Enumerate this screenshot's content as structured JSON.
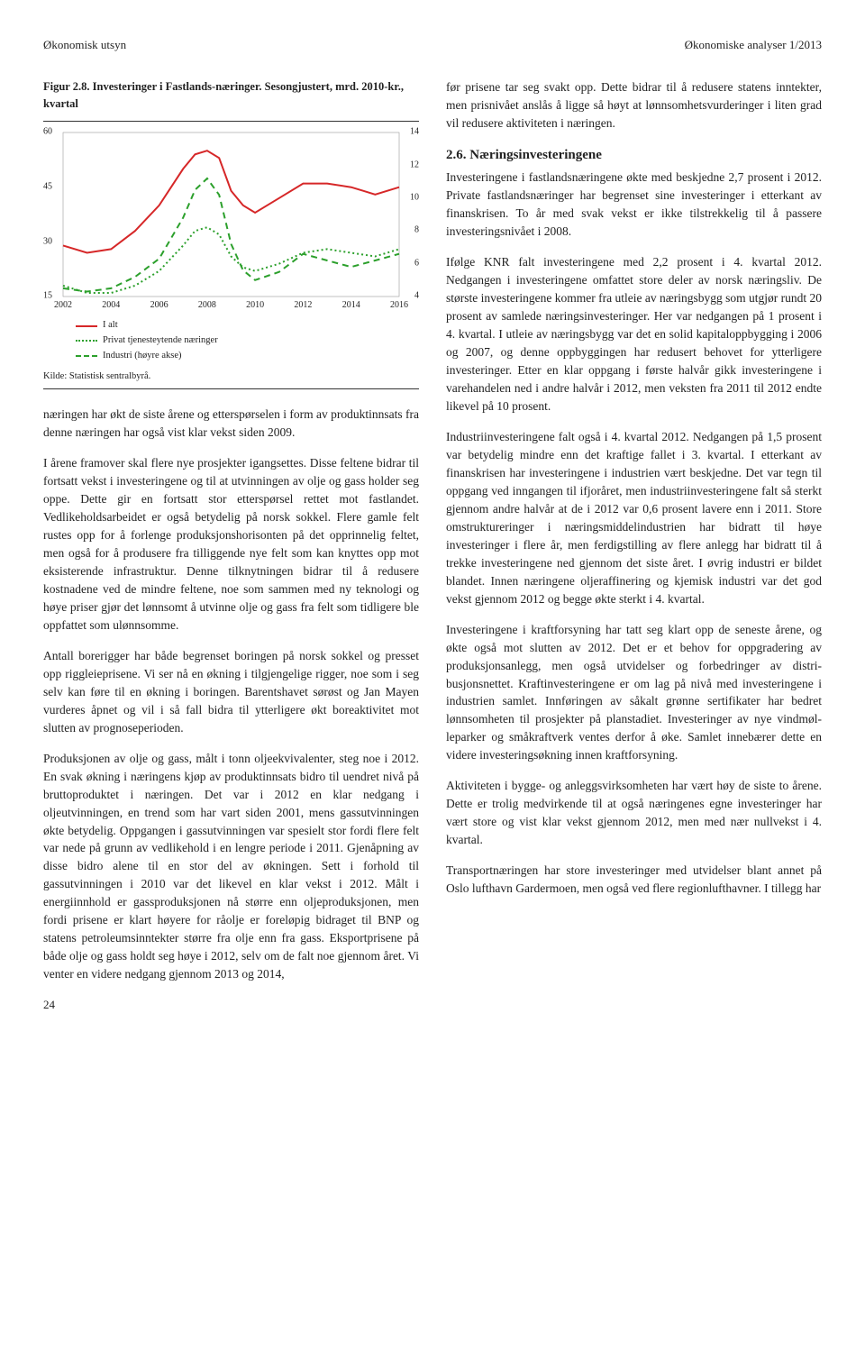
{
  "header": {
    "left": "Økonomisk utsyn",
    "right": "Økonomiske analyser 1/2013"
  },
  "figure": {
    "caption": "Figur 2.8. Investeringer i Fastlands-næringer. Sesongjustert, mrd. 2010-kr., kvartal",
    "source": "Kilde: Statistisk sentralbyrå.",
    "chart": {
      "type": "line",
      "x_start": 2002,
      "x_end": 2016,
      "x_ticks": [
        2002,
        2004,
        2006,
        2008,
        2010,
        2012,
        2014,
        2016
      ],
      "left_axis": {
        "min": 15,
        "max": 60,
        "ticks": [
          15,
          30,
          45,
          60
        ]
      },
      "right_axis": {
        "min": 4,
        "max": 14,
        "ticks": [
          4,
          6,
          8,
          10,
          12,
          14
        ]
      },
      "background_color": "#ffffff",
      "series": [
        {
          "name": "I alt",
          "axis": "left",
          "color": "#d62728",
          "style": "solid",
          "width": 2,
          "points": [
            [
              2002,
              29
            ],
            [
              2003,
              27
            ],
            [
              2004,
              28
            ],
            [
              2005,
              33
            ],
            [
              2006,
              40
            ],
            [
              2007,
              50
            ],
            [
              2007.5,
              54
            ],
            [
              2008,
              55
            ],
            [
              2008.5,
              53
            ],
            [
              2009,
              44
            ],
            [
              2009.5,
              40
            ],
            [
              2010,
              38
            ],
            [
              2011,
              42
            ],
            [
              2012,
              46
            ],
            [
              2013,
              46
            ],
            [
              2014,
              45
            ],
            [
              2014.5,
              44
            ],
            [
              2015,
              43
            ],
            [
              2016,
              45
            ]
          ]
        },
        {
          "name": "Privat tjenesteytende næringer",
          "axis": "left",
          "color": "#2ca02c",
          "style": "dotted",
          "width": 2,
          "points": [
            [
              2002,
              18
            ],
            [
              2003,
              16
            ],
            [
              2004,
              16
            ],
            [
              2005,
              18
            ],
            [
              2006,
              22
            ],
            [
              2007,
              29
            ],
            [
              2007.5,
              33
            ],
            [
              2008,
              34
            ],
            [
              2008.5,
              32
            ],
            [
              2009,
              26
            ],
            [
              2009.5,
              23
            ],
            [
              2010,
              22
            ],
            [
              2011,
              24
            ],
            [
              2012,
              27
            ],
            [
              2013,
              28
            ],
            [
              2014,
              27
            ],
            [
              2015,
              26
            ],
            [
              2016,
              28
            ]
          ]
        },
        {
          "name": "Industri (høyre akse)",
          "axis": "right",
          "color": "#2ca02c",
          "style": "dashed",
          "width": 2,
          "points": [
            [
              2002,
              4.5
            ],
            [
              2003,
              4.3
            ],
            [
              2004,
              4.5
            ],
            [
              2005,
              5.2
            ],
            [
              2006,
              6.3
            ],
            [
              2007,
              8.8
            ],
            [
              2007.5,
              10.5
            ],
            [
              2008,
              11.2
            ],
            [
              2008.5,
              10.2
            ],
            [
              2009,
              7.2
            ],
            [
              2009.5,
              5.6
            ],
            [
              2010,
              5.0
            ],
            [
              2011,
              5.5
            ],
            [
              2012,
              6.6
            ],
            [
              2013,
              6.2
            ],
            [
              2014,
              5.8
            ],
            [
              2015,
              6.2
            ],
            [
              2016,
              6.6
            ]
          ]
        }
      ],
      "legend": [
        {
          "label": "I alt",
          "color": "#d62728",
          "style": "solid"
        },
        {
          "label": "Privat tjenesteytende næringer",
          "color": "#2ca02c",
          "style": "dotted"
        },
        {
          "label": "Industri (høyre akse)",
          "color": "#2ca02c",
          "style": "dashed"
        }
      ]
    }
  },
  "left_paras": [
    "næringen har økt de siste årene og etterspørselen i form av produktinnsats fra denne næringen har også vist klar vekst siden 2009.",
    "I årene framover skal flere nye prosjekter igangsettes. Disse feltene bidrar til fortsatt vekst i investeringene og til at utvinningen av olje og gass holder seg oppe. Dette gir en fortsatt stor etterspørsel rettet mot fastlandet. Vedlikeholdsarbeidet er også betydelig på norsk sokkel. Flere gamle felt rustes opp for å forlenge produksjons­horisonten på det opprinnelig feltet, men også for å produsere fra tilliggende nye felt som kan knyttes opp mot eksisterende infrastruktur. Denne tilknytningen bidrar til å redusere kostnadene ved de mindre feltene, noe som sammen med ny teknologi og høye priser gjør det lønnsomt å utvinne olje og gass fra felt som tidligere ble oppfattet som ulønnsomme.",
    "Antall borerigger har både begrenset boringen på norsk sokkel og presset opp riggleieprisene. Vi ser nå en øk­ning i tilgjengelige rigger, noe som i seg selv kan føre til en økning i boringen. Barentshavet sørøst og Jan Mayen vurderes åpnet og vil i så fall bidra til ytterligere økt boreaktivitet mot slutten av prognoseperioden.",
    "Produksjonen av olje og gass, målt i tonn oljeekvivalen­ter, steg noe i 2012. En svak økning i næringens kjøp av produktinnsats bidro til uendret nivå på brutto­produktet i næringen. Det var i 2012 en klar nedgang i oljeutvinningen, en trend som har vart siden 2001, mens gassutvinningen økte betydelig. Oppgangen i gassutvinningen var spesielt stor fordi flere felt var nede på grunn av vedlikehold i en lengre periode i 2011. Gjenåpning av disse bidro alene til en stor del av økningen. Sett i forhold til gassutvinningen i 2010 var det likevel en klar vekst i 2012. Målt i energiinnhold er gassproduksjonen nå større enn oljeproduksjonen, men fordi prisene er klart høyere for råolje er foreløpig bi­draget til BNP og statens petroleumsinntekter større fra olje enn fra gass. Eksportprisene på både olje og gass holdt seg høye i 2012, selv om de falt noe gjennom året. Vi venter en videre nedgang gjennom 2013 og 2014,"
  ],
  "right_first_para": "før prisene tar seg svakt opp. Dette bidrar til å redusere statens inntekter, men prisnivået anslås å ligge så høyt at lønnsomhetsvurderinger i liten grad vil redusere aktiviteten i næringen.",
  "section": {
    "number": "2.6.",
    "title": "Næringsinvesteringene"
  },
  "right_paras": [
    "Investeringene i fastlandsnæringene økte med beskjed­ne 2,7 prosent i 2012. Private fastlandsnæringer har begrenset sine investeringer i etterkant av finanskrisen. To år med svak vekst er ikke tilstrekkelig til å passere investeringsnivået i 2008.",
    "Ifølge KNR falt investeringene med 2,2 prosent i 4. kvartal 2012. Nedgangen i investeringene omfattet store deler av norsk næringsliv. De største investering­ene kommer fra utleie av næringsbygg som utgjør rundt 20 prosent av samlede næringsinvesteringer. Her var nedgangen på 1 prosent i 4. kvartal. I utleie av nærings­bygg var det en solid kapitaloppbygging i 2006 og 2007, og denne oppbyggingen har redusert behovet for ytterligere investeringer. Etter en klar oppgang i første halvår gikk investeringene i varehandelen ned i andre halvår i 2012, men veksten fra 2011 til 2012 endte likevel på 10 prosent.",
    "Industriinvesteringene falt også i 4. kvartal 2012. Nedgangen på 1,5 prosent var betydelig mindre enn det kraftige fallet i 3. kvartal. I etterkant av finanskrisen har investeringene i industrien vært beskjedne. Det var tegn til oppgang ved inngangen til ifjoråret, men industriin­vesteringene falt så sterkt gjennom andre halvår at de i 2012 var 0,6 prosent lavere enn i 2011. Store om­struktureringer i næringsmiddelindustrien har bidratt til høye investeringer i flere år, men ferdigstilling av flere anlegg har bidratt til å trekke investeringene ned gjennom det siste året. I øvrig industri er bildet blandet. Innen næringene oljeraffinering og kjemisk industri var det god vekst gjennom 2012 og begge økte sterkt i 4. kvartal.",
    "Investeringene i kraftforsyning har tatt seg klart opp de seneste årene, og økte også mot slutten av 2012. Det er et behov for oppgradering av produksjonsan­legg, men også utvidelser og forbedringer av distri­busjonsnettet. Kraftinvesteringene er om lag på nivå med investeringene i industrien samlet. Innføringen av såkalt grønne sertifikater har bedret lønnsomheten til prosjekter på planstadiet. Investeringer av nye vindmøl­leparker og småkraftverk ventes derfor å øke. Samlet innebærer dette en videre investeringsøkning innen kraftforsyning.",
    "Aktiviteten i bygge- og anleggsvirksomheten har vært høy de siste to årene. Dette er trolig medvirkende til at også næringenes egne investeringer har vært store og vist klar vekst gjennom 2012, men med nær nullvekst i 4. kvartal.",
    "Transportnæringen har store investeringer med ut­videlser blant annet på Oslo lufthavn Gardermoen, men også ved flere regionlufthavner. I tillegg har"
  ],
  "page_number": "24"
}
